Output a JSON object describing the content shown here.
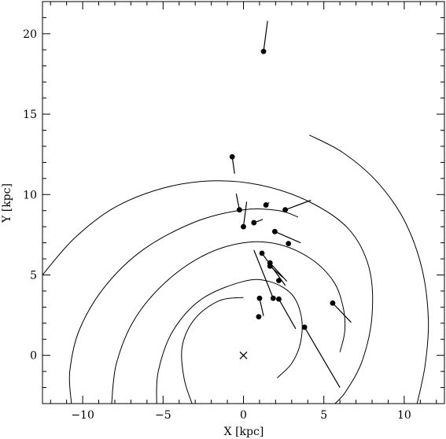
{
  "chart_data": {
    "type": "scatter",
    "title": "",
    "xlabel": "X [kpc]",
    "ylabel": "Y [kpc]",
    "xlim": [
      -12.5,
      12.5
    ],
    "ylim": [
      -3,
      22
    ],
    "x_ticks": [
      -10,
      -5,
      0,
      5,
      10
    ],
    "y_ticks": [
      0,
      5,
      10,
      15,
      20
    ],
    "x_tick_labels": [
      "−10",
      "−5",
      "0",
      "5",
      "10"
    ],
    "y_tick_labels": [
      "0",
      "5",
      "10",
      "15",
      "20"
    ],
    "grid": false,
    "legend": "none",
    "sun_marker": {
      "x": 0.0,
      "y": 0.0,
      "symbol": "×"
    },
    "points": [
      {
        "x": 1.25,
        "y": 18.9,
        "vec": [
          0.25,
          1.9
        ]
      },
      {
        "x": -0.7,
        "y": 12.35,
        "vec": [
          0.15,
          -1.05
        ]
      },
      {
        "x": -0.25,
        "y": 9.05,
        "vec": [
          -0.2,
          1.0
        ]
      },
      {
        "x": 0.0,
        "y": 8.0,
        "vec": [
          0.2,
          1.55
        ]
      },
      {
        "x": 1.4,
        "y": 9.35,
        "vec": [
          0.2,
          0.15
        ]
      },
      {
        "x": 2.6,
        "y": 9.05,
        "vec": [
          1.6,
          0.6
        ]
      },
      {
        "x": 0.65,
        "y": 8.25,
        "vec": [
          0.55,
          0.2
        ]
      },
      {
        "x": 1.95,
        "y": 7.7,
        "vec": [
          1.6,
          -0.7
        ]
      },
      {
        "x": 2.8,
        "y": 6.95,
        "vec": [
          0.0,
          0.0
        ]
      },
      {
        "x": 1.15,
        "y": 6.35,
        "vec": [
          1.45,
          -2.0
        ]
      },
      {
        "x": 1.65,
        "y": 5.75,
        "vec": [
          1.05,
          -1.15
        ]
      },
      {
        "x": 1.65,
        "y": 5.55,
        "vec": [
          0.8,
          -0.7
        ]
      },
      {
        "x": 2.2,
        "y": 4.65,
        "vec": [
          0.0,
          0.0
        ]
      },
      {
        "x": 1.85,
        "y": 3.55,
        "vec": [
          -1.2,
          3.0
        ]
      },
      {
        "x": 2.2,
        "y": 3.5,
        "vec": [
          1.05,
          -1.85
        ]
      },
      {
        "x": 1.0,
        "y": 3.55,
        "vec": [
          0.25,
          -1.1
        ]
      },
      {
        "x": 0.95,
        "y": 2.4,
        "vec": [
          0.0,
          0.0
        ]
      },
      {
        "x": 3.8,
        "y": 1.75,
        "vec": [
          2.2,
          -3.75
        ]
      },
      {
        "x": 5.55,
        "y": 3.25,
        "vec": [
          1.15,
          -1.2
        ]
      }
    ],
    "arms": [
      [
        [
          -12.5,
          5.0
        ],
        [
          -10.5,
          7.3
        ],
        [
          -8.0,
          9.2
        ],
        [
          -5.0,
          10.4
        ],
        [
          -2.0,
          10.85
        ],
        [
          1.0,
          10.6
        ],
        [
          4.0,
          9.6
        ],
        [
          6.5,
          7.9
        ],
        [
          7.8,
          5.5
        ],
        [
          8.0,
          2.5
        ],
        [
          7.4,
          -0.3
        ],
        [
          6.4,
          -2.2
        ],
        [
          5.7,
          -3.0
        ]
      ],
      [
        [
          -10.7,
          -3.0
        ],
        [
          -10.8,
          -1.0
        ],
        [
          -10.2,
          1.6
        ],
        [
          -8.6,
          4.3
        ],
        [
          -6.2,
          6.6
        ],
        [
          -3.0,
          8.3
        ],
        [
          0.0,
          9.05
        ],
        [
          2.2,
          9.0
        ],
        [
          3.4,
          8.6
        ]
      ],
      [
        [
          -8.2,
          -3.0
        ],
        [
          -7.9,
          -0.5
        ],
        [
          -6.8,
          2.2
        ],
        [
          -4.9,
          4.5
        ],
        [
          -2.5,
          6.2
        ],
        [
          0.0,
          7.0
        ],
        [
          2.2,
          6.9
        ],
        [
          4.2,
          6.0
        ],
        [
          5.6,
          4.6
        ],
        [
          6.2,
          3.0
        ],
        [
          6.3,
          1.5
        ],
        [
          6.0,
          0.2
        ]
      ],
      [
        [
          -5.4,
          -3.0
        ],
        [
          -5.3,
          -1.0
        ],
        [
          -4.4,
          1.5
        ],
        [
          -2.6,
          3.5
        ],
        [
          0.0,
          4.6
        ],
        [
          1.6,
          4.6
        ],
        [
          3.0,
          3.8
        ],
        [
          3.6,
          2.4
        ],
        [
          3.55,
          0.8
        ],
        [
          3.0,
          -0.5
        ],
        [
          2.1,
          -1.4
        ]
      ],
      [
        [
          0.0,
          3.6
        ],
        [
          -1.5,
          3.4
        ],
        [
          -3.0,
          2.3
        ],
        [
          -3.8,
          0.6
        ],
        [
          -3.7,
          -1.4
        ],
        [
          -3.2,
          -3.0
        ]
      ],
      [
        [
          4.1,
          13.7
        ],
        [
          6.2,
          12.6
        ],
        [
          8.3,
          10.8
        ],
        [
          10.0,
          8.4
        ],
        [
          11.1,
          5.4
        ],
        [
          11.5,
          2.2
        ],
        [
          11.3,
          -0.6
        ],
        [
          10.8,
          -3.0
        ]
      ]
    ]
  }
}
